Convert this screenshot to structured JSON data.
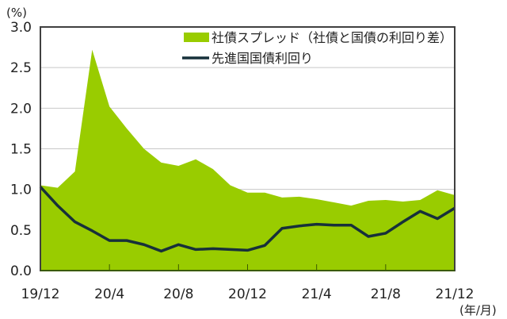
{
  "chart_data": {
    "type": "area",
    "title": "",
    "ylabel": "(%)",
    "xlabel": "(年/月)",
    "ylim": [
      0,
      3.0
    ],
    "yticks": [
      "0.0",
      "0.5",
      "1.0",
      "1.5",
      "2.0",
      "2.5",
      "3.0"
    ],
    "xtick_labels": [
      "19/12",
      "20/4",
      "20/8",
      "20/12",
      "21/4",
      "21/8",
      "21/12"
    ],
    "xtick_indices": [
      0,
      4,
      8,
      12,
      16,
      20,
      24
    ],
    "grid": "horizontal",
    "legend_position": "top-right inside",
    "x": [
      "19/12",
      "20/1",
      "20/2",
      "20/3",
      "20/4",
      "20/5",
      "20/6",
      "20/7",
      "20/8",
      "20/9",
      "20/10",
      "20/11",
      "20/12",
      "21/1",
      "21/2",
      "21/3",
      "21/4",
      "21/5",
      "21/6",
      "21/7",
      "21/8",
      "21/9",
      "21/10",
      "21/11",
      "21/12"
    ],
    "series": [
      {
        "name": "社債スプレッド（社債と国債の利回り差）",
        "type": "area",
        "color": "#99CC00",
        "values": [
          1.05,
          1.02,
          1.22,
          2.72,
          2.02,
          1.75,
          1.5,
          1.33,
          1.29,
          1.37,
          1.25,
          1.05,
          0.96,
          0.96,
          0.9,
          0.91,
          0.88,
          0.84,
          0.8,
          0.86,
          0.87,
          0.85,
          0.87,
          0.99,
          0.93
        ]
      },
      {
        "name": "先進国国債利回り",
        "type": "line",
        "color": "#17303A",
        "values": [
          1.03,
          0.8,
          0.6,
          0.49,
          0.37,
          0.37,
          0.32,
          0.24,
          0.32,
          0.26,
          0.27,
          0.26,
          0.25,
          0.31,
          0.52,
          0.55,
          0.57,
          0.56,
          0.56,
          0.42,
          0.46,
          0.6,
          0.73,
          0.64,
          0.77
        ]
      }
    ]
  },
  "labels": {
    "y_unit": "(%)",
    "x_unit": "(年/月)",
    "legend_spread": "社債スプレッド（社債と国債の利回り差）",
    "legend_yield": "先進国国債利回り"
  }
}
